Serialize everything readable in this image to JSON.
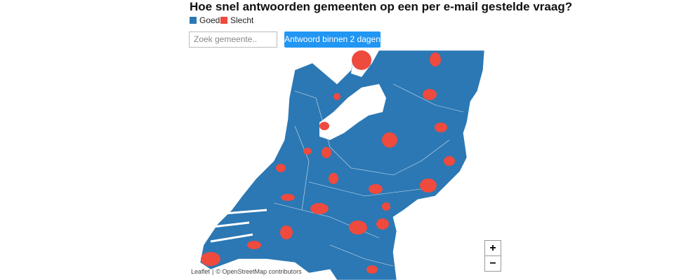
{
  "header": {
    "title": "Hoe snel antwoorden gemeenten op een per e-mail gestelde vraag?"
  },
  "legend": [
    {
      "label": "Goed",
      "color": "#2b78b4"
    },
    {
      "label": "Slecht",
      "color": "#ee4a3e"
    }
  ],
  "controls": {
    "search_placeholder": "Zoek gemeente..",
    "filter": "Antwoord binnen 2 dagen"
  },
  "map": {
    "zoom_in": "+",
    "zoom_out": "−",
    "attribution": {
      "leaflet": "Leaflet",
      "separator": "|",
      "osm": "© OpenStreetMap contributors"
    }
  }
}
